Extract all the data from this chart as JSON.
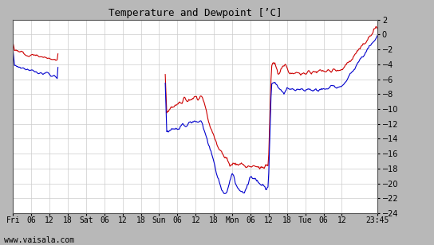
{
  "title": "Temperature and Dewpoint [’C]",
  "footer": "www.vaisala.com",
  "ylim": [
    -24,
    2
  ],
  "yticks": [
    2,
    0,
    -2,
    -4,
    -6,
    -8,
    -10,
    -12,
    -14,
    -16,
    -18,
    -20,
    -22,
    -24
  ],
  "outer_bg": "#b8b8b8",
  "plot_bg_color": "#ffffff",
  "grid_color": "#cccccc",
  "temp_color": "#cc0000",
  "dew_color": "#0000cc",
  "line_width": 0.8,
  "x_tick_labels": [
    "Fri",
    "06",
    "12",
    "18",
    "Sat",
    "06",
    "12",
    "18",
    "Sun",
    "06",
    "12",
    "18",
    "Mon",
    "06",
    "12",
    "18",
    "Tue",
    "06",
    "12",
    "23:45"
  ],
  "x_tick_positions": [
    0,
    6,
    12,
    18,
    24,
    30,
    36,
    42,
    48,
    54,
    60,
    66,
    72,
    78,
    84,
    90,
    96,
    102,
    108,
    119.75
  ],
  "total_hours": 119.75,
  "figsize": [
    5.44,
    3.08
  ],
  "dpi": 100
}
